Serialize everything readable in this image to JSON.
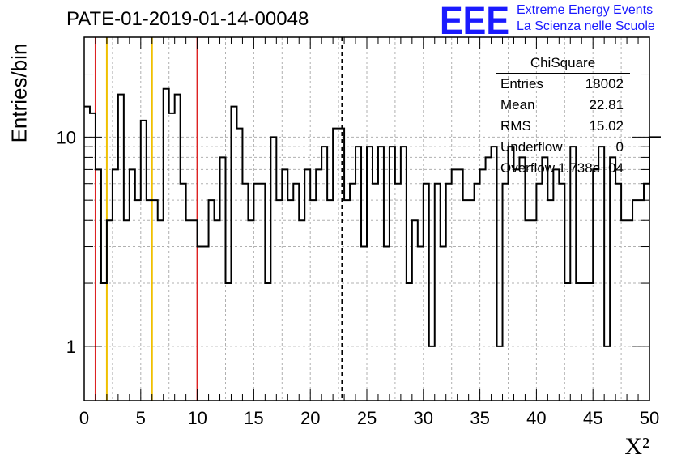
{
  "title": "PATE-01-2019-01-14-00048",
  "logo": {
    "text": "EEE",
    "line1": "Extreme Energy Events",
    "line2": "La Scienza nelle Scuole",
    "color": "#1a1aff"
  },
  "stats_box": {
    "title": "ChiSquare",
    "rows": [
      {
        "label": "Entries",
        "value": "18002"
      },
      {
        "label": "Mean",
        "value": "22.81"
      },
      {
        "label": "RMS",
        "value": "15.02"
      },
      {
        "label": "Underflow",
        "value": "0"
      },
      {
        "label": "Overflow",
        "value": "1.738e+04"
      }
    ]
  },
  "chart_data": {
    "type": "histogram",
    "xlabel": "X²",
    "ylabel": "Entries/bin",
    "xlim": [
      0,
      50
    ],
    "ylim": [
      0.55,
      30
    ],
    "yscale": "log",
    "grid": true,
    "x_ticks": [
      0,
      5,
      10,
      15,
      20,
      25,
      30,
      35,
      40,
      45,
      50
    ],
    "y_ticks": [
      1,
      10
    ],
    "bin_width": 0.5,
    "values": [
      14,
      13,
      7,
      2,
      4,
      7,
      16,
      4,
      7,
      5,
      12,
      5,
      5,
      4,
      17,
      13,
      16,
      6,
      4,
      4,
      3,
      3,
      5,
      4,
      8,
      2,
      14,
      11,
      6,
      4,
      6,
      6,
      2,
      10,
      5,
      7,
      5,
      6,
      4,
      7,
      5,
      7,
      9,
      5,
      11,
      11,
      5,
      6,
      9,
      3,
      9,
      6,
      9,
      3,
      9,
      6,
      9,
      2,
      4,
      3,
      6,
      1,
      6,
      3,
      6,
      7,
      7,
      5,
      5,
      6,
      7,
      8,
      9,
      1,
      6,
      9,
      7,
      8,
      4,
      4,
      6,
      8,
      5,
      7,
      6,
      2,
      9,
      2,
      2,
      2,
      7,
      9,
      1,
      8,
      6,
      4,
      4,
      5,
      5,
      6,
      10,
      10
    ],
    "vertical_lines": [
      {
        "x": 1,
        "color": "#dd2222",
        "style": "solid"
      },
      {
        "x": 2,
        "color": "#f0c000",
        "style": "solid"
      },
      {
        "x": 6,
        "color": "#f0c000",
        "style": "solid"
      },
      {
        "x": 10,
        "color": "#dd2222",
        "style": "solid"
      },
      {
        "x": 22.81,
        "color": "#000000",
        "style": "dashed"
      }
    ]
  }
}
